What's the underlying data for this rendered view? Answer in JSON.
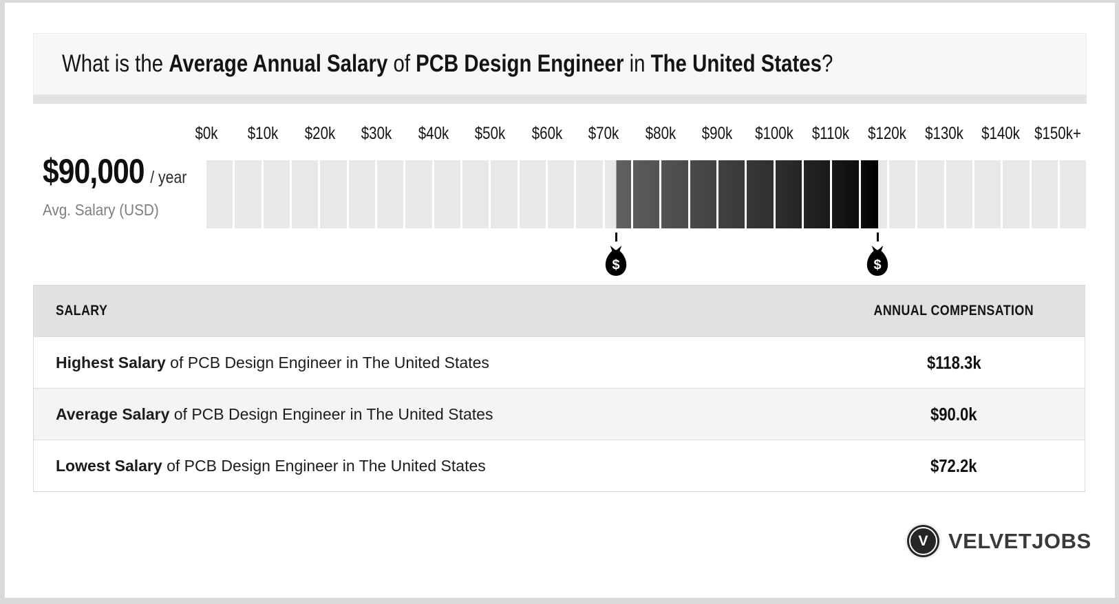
{
  "colors": {
    "frame": "#d9d9d9",
    "card": "#ffffff",
    "header_bg": "#f7f7f7",
    "header_shadow": "#e3e3e3",
    "cell_light": "#e8e8e8",
    "highlight_start": "#5f5f5f",
    "highlight_end": "#000000",
    "table_header_bg": "#e1e1e1",
    "row_alt_bg": "#f4f4f4",
    "text_gray": "#7e7e7e",
    "logo_dark": "#262626"
  },
  "header": {
    "title_runs": [
      {
        "text": "What is the ",
        "bold": false
      },
      {
        "text": "Average Annual Salary",
        "bold": true
      },
      {
        "text": " of ",
        "bold": false
      },
      {
        "text": "PCB Design Engineer",
        "bold": true
      },
      {
        "text": " in ",
        "bold": false
      },
      {
        "text": "The United States",
        "bold": true
      },
      {
        "text": "?",
        "bold": false
      }
    ]
  },
  "salary_display": {
    "amount": "$90,000",
    "unit": "/ year",
    "caption": "Avg. Salary (USD)"
  },
  "chart_data": {
    "type": "bar",
    "variant": "salary-range-gauge",
    "title": "Average Annual Salary of PCB Design Engineer in The United States",
    "axis": {
      "min": 0,
      "max": 155,
      "cell_step": 5,
      "tick_step": 10,
      "tick_labels": [
        "$0k",
        "$10k",
        "$20k",
        "$30k",
        "$40k",
        "$50k",
        "$60k",
        "$70k",
        "$80k",
        "$90k",
        "$100k",
        "$110k",
        "$120k",
        "$130k",
        "$140k",
        "$150k+"
      ]
    },
    "highlight_range": {
      "start_value": 72.2,
      "end_value": 118.3,
      "start_label": "$72.2k",
      "end_label": "$118.3k"
    },
    "average_value": 90.0,
    "markers": [
      {
        "value": 72.2,
        "icon": "money-bag-icon"
      },
      {
        "value": 118.3,
        "icon": "money-bag-icon"
      }
    ],
    "legend_position": "none",
    "grid": false
  },
  "table": {
    "col_headers": [
      "SALARY",
      "ANNUAL COMPENSATION"
    ],
    "rows": [
      {
        "label_bold": "Highest Salary",
        "label_rest": " of PCB Design Engineer in The United States",
        "value": "$118.3k"
      },
      {
        "label_bold": "Average Salary",
        "label_rest": " of PCB Design Engineer in The United States",
        "value": "$90.0k"
      },
      {
        "label_bold": "Lowest Salary",
        "label_rest": " of PCB Design Engineer in The United States",
        "value": "$72.2k"
      }
    ]
  },
  "logo": {
    "monogram": "V",
    "name": "VELVETJOBS"
  }
}
